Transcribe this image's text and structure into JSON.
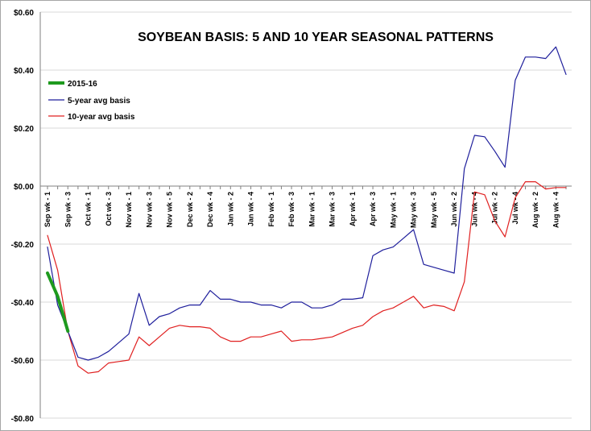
{
  "chart_data": {
    "type": "line",
    "title": "SOYBEAN BASIS: 5 AND 10 YEAR SEASONAL PATTERNS",
    "xlabel": "",
    "ylabel": "",
    "ylim": [
      -0.8,
      0.6
    ],
    "yticks": [
      {
        "value": 0.6,
        "label": "$0.60"
      },
      {
        "value": 0.4,
        "label": "$0.40"
      },
      {
        "value": 0.2,
        "label": "$0.20"
      },
      {
        "value": 0.0,
        "label": "$0.00"
      },
      {
        "value": -0.2,
        "label": "-$0.20"
      },
      {
        "value": -0.4,
        "label": "-$0.40"
      },
      {
        "value": -0.6,
        "label": "-$0.60"
      },
      {
        "value": -0.8,
        "label": "-$0.80"
      }
    ],
    "grid": true,
    "legend_position": "left",
    "x_tick_labels": [
      {
        "index": 0,
        "label": "Sep wk - 1"
      },
      {
        "index": 2,
        "label": "Sep wk - 3"
      },
      {
        "index": 4,
        "label": "Oct wk - 1"
      },
      {
        "index": 6,
        "label": "Oct wk - 3"
      },
      {
        "index": 8,
        "label": "Nov wk - 1"
      },
      {
        "index": 10,
        "label": "Nov wk - 3"
      },
      {
        "index": 12,
        "label": "Nov wk - 5"
      },
      {
        "index": 14,
        "label": "Dec wk - 2"
      },
      {
        "index": 16,
        "label": "Dec wk - 4"
      },
      {
        "index": 18,
        "label": "Jan wk - 2"
      },
      {
        "index": 20,
        "label": "Jan wk - 4"
      },
      {
        "index": 22,
        "label": "Feb wk - 1"
      },
      {
        "index": 24,
        "label": "Feb wk - 3"
      },
      {
        "index": 26,
        "label": "Mar wk - 1"
      },
      {
        "index": 28,
        "label": "Mar wk - 3"
      },
      {
        "index": 30,
        "label": "Apr wk - 1"
      },
      {
        "index": 32,
        "label": "Apr wk - 3"
      },
      {
        "index": 34,
        "label": "May wk - 1"
      },
      {
        "index": 36,
        "label": "May wk - 3"
      },
      {
        "index": 38,
        "label": "May wk - 5"
      },
      {
        "index": 40,
        "label": "Jun wk - 2"
      },
      {
        "index": 42,
        "label": "Jun wk - 4"
      },
      {
        "index": 44,
        "label": "Jul wk - 2"
      },
      {
        "index": 46,
        "label": "Jul wk - 4"
      },
      {
        "index": 48,
        "label": "Aug wk - 2"
      },
      {
        "index": 50,
        "label": "Aug wk - 4"
      }
    ],
    "series": [
      {
        "name": "2015-16",
        "color": "#1e9a1e",
        "start_index": 0,
        "values": [
          -0.3,
          -0.38,
          -0.5
        ]
      },
      {
        "name": "5-year avg basis",
        "color": "#1f1f9c",
        "start_index": 0,
        "values": [
          -0.21,
          -0.41,
          -0.5,
          -0.59,
          -0.6,
          -0.59,
          -0.57,
          -0.54,
          -0.51,
          -0.37,
          -0.48,
          -0.45,
          -0.44,
          -0.42,
          -0.41,
          -0.41,
          -0.36,
          -0.39,
          -0.39,
          -0.4,
          -0.4,
          -0.41,
          -0.41,
          -0.42,
          -0.4,
          -0.4,
          -0.42,
          -0.42,
          -0.41,
          -0.39,
          -0.39,
          -0.385,
          -0.24,
          -0.22,
          -0.21,
          -0.18,
          -0.15,
          -0.27,
          -0.28,
          -0.29,
          -0.3,
          0.06,
          0.175,
          0.17,
          0.12,
          0.065,
          0.365,
          0.445,
          0.445,
          0.44,
          0.48,
          0.385
        ]
      },
      {
        "name": "10-year avg basis",
        "color": "#e02020",
        "start_index": 0,
        "values": [
          -0.17,
          -0.29,
          -0.5,
          -0.62,
          -0.645,
          -0.64,
          -0.61,
          -0.605,
          -0.6,
          -0.52,
          -0.55,
          -0.52,
          -0.49,
          -0.48,
          -0.485,
          -0.485,
          -0.49,
          -0.52,
          -0.535,
          -0.535,
          -0.52,
          -0.52,
          -0.51,
          -0.5,
          -0.535,
          -0.53,
          -0.53,
          -0.525,
          -0.52,
          -0.505,
          -0.49,
          -0.48,
          -0.45,
          -0.43,
          -0.42,
          -0.4,
          -0.38,
          -0.42,
          -0.41,
          -0.415,
          -0.43,
          -0.33,
          -0.02,
          -0.03,
          -0.12,
          -0.175,
          -0.04,
          0.015,
          0.015,
          -0.01,
          -0.005,
          -0.005
        ]
      }
    ]
  }
}
